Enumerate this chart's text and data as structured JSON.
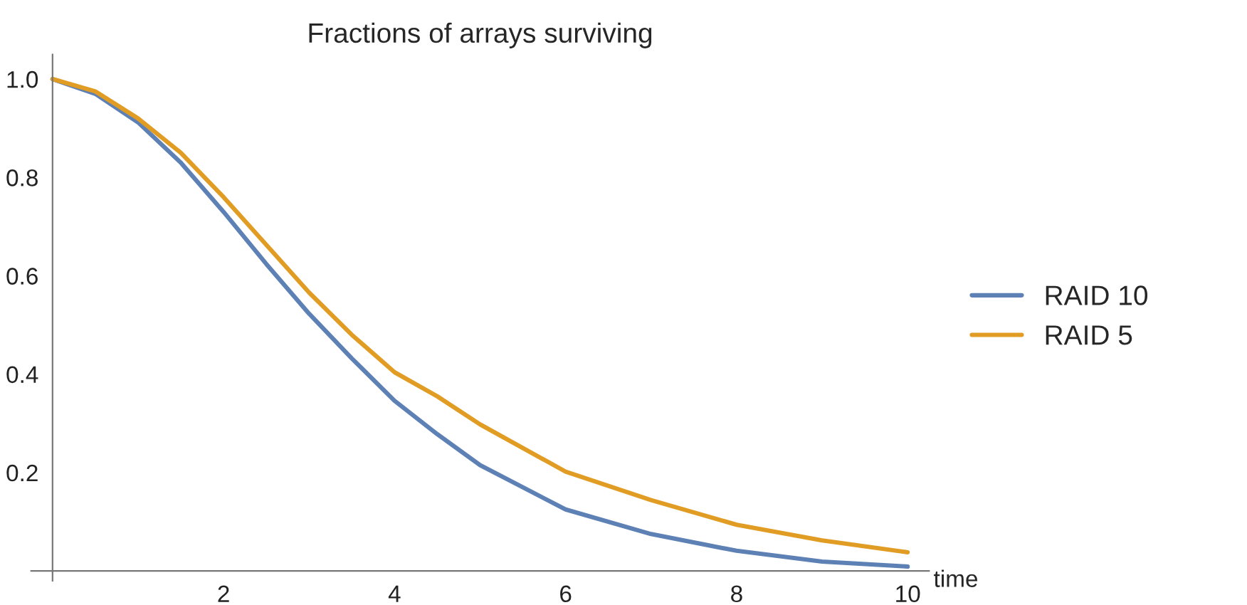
{
  "chart_data": {
    "type": "line",
    "title": "Fractions of arrays surviving",
    "xlabel": "time",
    "x": [
      0,
      0.5,
      1,
      1.5,
      2,
      2.5,
      3,
      3.5,
      4,
      4.5,
      5,
      6,
      7,
      8,
      9,
      10
    ],
    "series": [
      {
        "name": "RAID 10",
        "color": "#5e81b5",
        "values": [
          1.0,
          0.97,
          0.912,
          0.83,
          0.73,
          0.624,
          0.523,
          0.432,
          0.346,
          0.278,
          0.215,
          0.125,
          0.075,
          0.041,
          0.019,
          0.009
        ]
      },
      {
        "name": "RAID 5",
        "color": "#e19c24",
        "values": [
          1.0,
          0.975,
          0.92,
          0.85,
          0.76,
          0.663,
          0.566,
          0.48,
          0.404,
          0.355,
          0.298,
          0.202,
          0.144,
          0.094,
          0.062,
          0.038
        ]
      }
    ],
    "xlim": [
      -0.25,
      10.25
    ],
    "ylim": [
      -0.02,
      1.05
    ],
    "xticks": [
      2,
      4,
      6,
      8,
      10
    ],
    "yticks": [
      0.2,
      0.4,
      0.6,
      0.8,
      {
        "value": 1.0,
        "label": "1.0"
      }
    ],
    "legend": "right",
    "grid": false,
    "line_style": "solid",
    "marker": "none"
  }
}
